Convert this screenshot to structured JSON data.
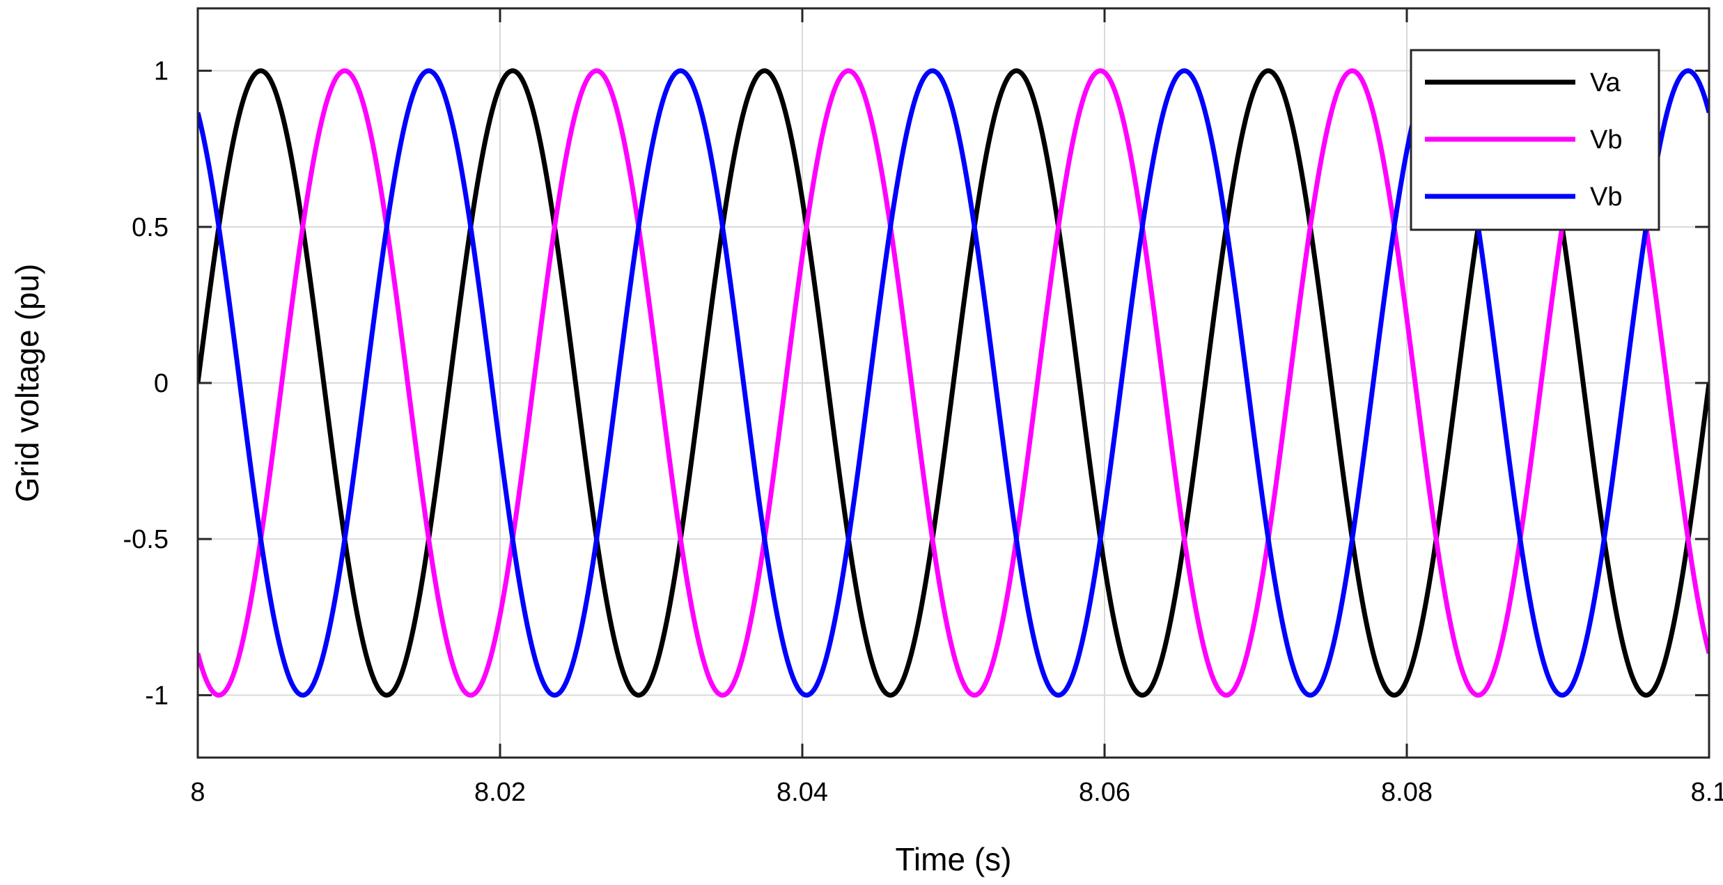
{
  "chart_data": {
    "type": "line",
    "title": "",
    "xlabel": "Time (s)",
    "ylabel": "Grid voltage (pu)",
    "xlim": [
      8,
      8.1
    ],
    "ylim": [
      -1.2,
      1.2
    ],
    "xticks": [
      8,
      8.02,
      8.04,
      8.06,
      8.08,
      8.1
    ],
    "xtick_labels": [
      "8",
      "8.02",
      "8.04",
      "8.06",
      "8.08",
      "8.1"
    ],
    "yticks": [
      -1,
      -0.5,
      0,
      0.5,
      1
    ],
    "ytick_labels": [
      "-1",
      "-0.5",
      "0",
      "0.5",
      "1"
    ],
    "grid": true,
    "legend_position": "top-right",
    "series": [
      {
        "name": "Va",
        "color": "#000000",
        "amplitude": 1,
        "frequency_hz": 60,
        "phase_deg": 0
      },
      {
        "name": "Vb",
        "color": "#ff00ff",
        "amplitude": 1,
        "frequency_hz": 60,
        "phase_deg": -120
      },
      {
        "name": "Vb",
        "color": "#0000ff",
        "amplitude": 1,
        "frequency_hz": 60,
        "phase_deg": 120
      }
    ]
  }
}
